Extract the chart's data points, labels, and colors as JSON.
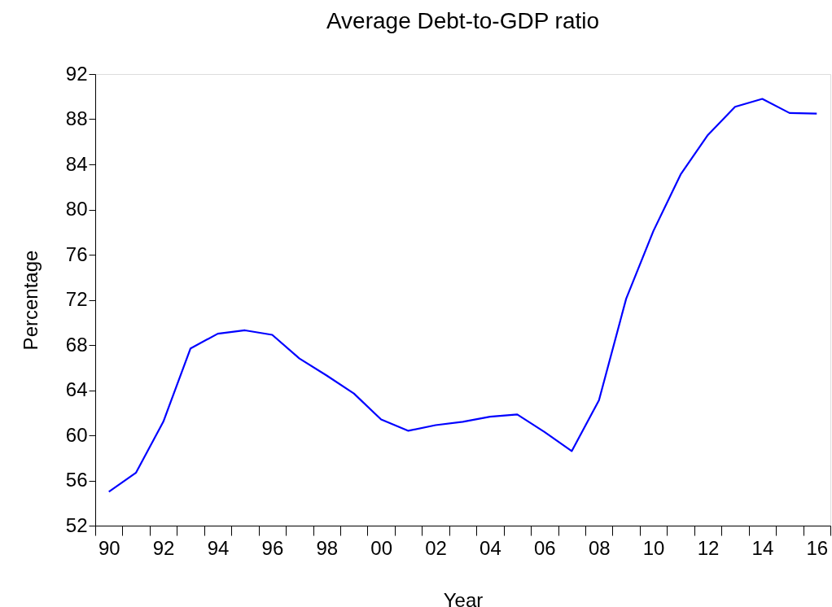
{
  "chart_data": {
    "type": "line",
    "title": "Average Debt-to-GDP ratio",
    "xlabel": "Year",
    "ylabel": "Percentage",
    "categories": [
      "90",
      null,
      "92",
      null,
      "94",
      null,
      "96",
      null,
      "98",
      null,
      "00",
      null,
      "02",
      null,
      "04",
      null,
      "06",
      null,
      "08",
      null,
      "10",
      null,
      "12",
      null,
      "14",
      null,
      "16"
    ],
    "series": [
      {
        "color": "#0000ff",
        "values": [
          55.0,
          56.7,
          61.2,
          67.7,
          69.0,
          69.3,
          68.9,
          66.8,
          65.3,
          63.7,
          61.4,
          60.4,
          60.9,
          61.2,
          61.65,
          61.85,
          60.3,
          58.6,
          63.1,
          72.1,
          78.1,
          83.1,
          86.6,
          89.1,
          89.8,
          88.55,
          88.5
        ]
      }
    ],
    "ylim": [
      52,
      92
    ],
    "yticks": [
      52,
      56,
      60,
      64,
      68,
      72,
      76,
      80,
      84,
      88,
      92
    ],
    "grid": false
  }
}
